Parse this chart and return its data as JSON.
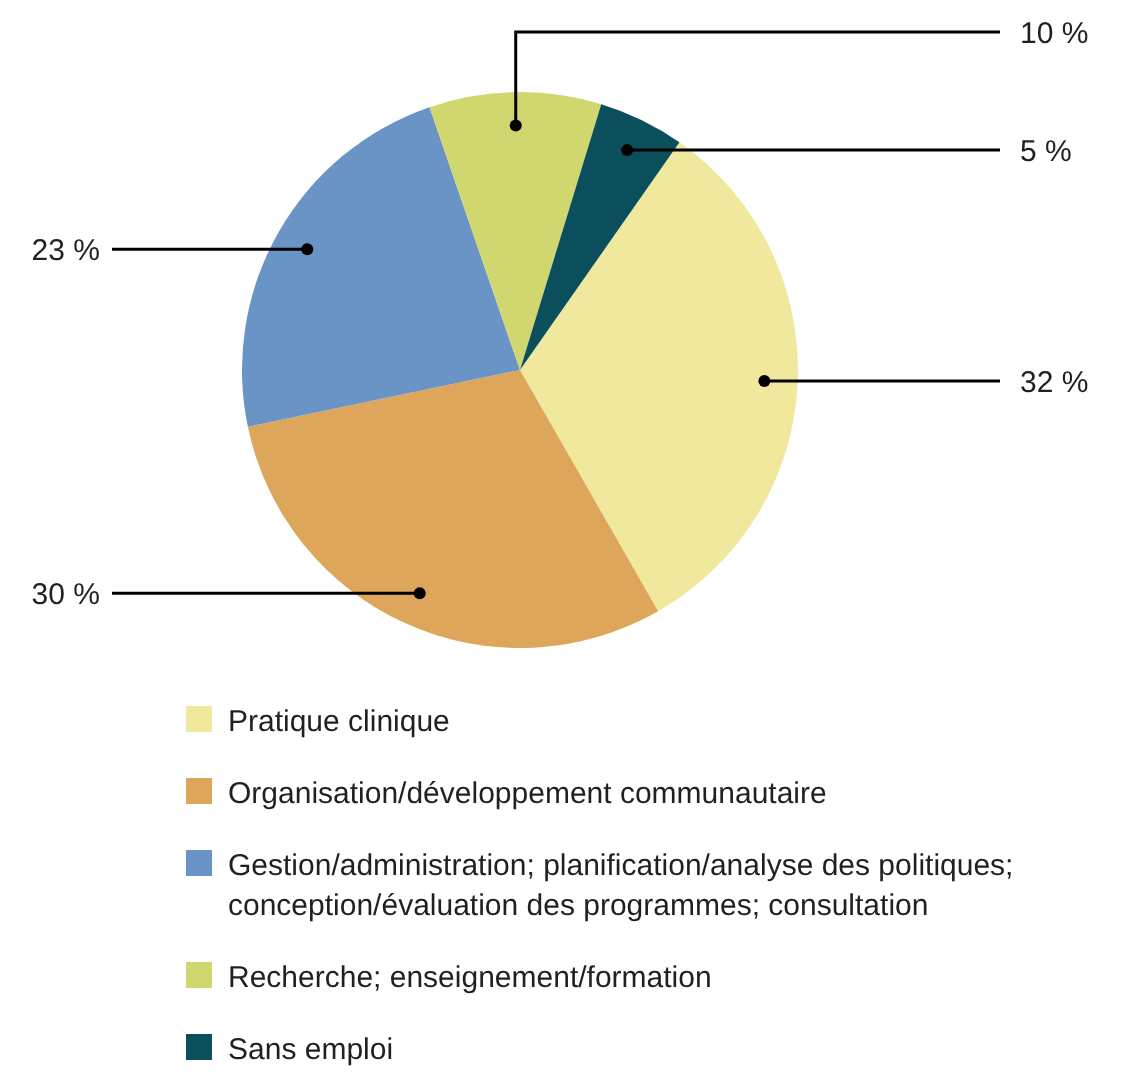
{
  "chart_data": {
    "type": "pie",
    "categories": [
      "Pratique clinique",
      "Organisation/développement communautaire",
      "Gestion/administration; planification/analyse des politiques; conception/évaluation des programmes; consultation",
      "Recherche; enseignement/formation",
      "Sans emploi"
    ],
    "values": [
      32,
      30,
      23,
      10,
      5
    ],
    "colors": [
      "#f0e89c",
      "#dea65a",
      "#6a93c6",
      "#cfd76e",
      "#0b4f5c"
    ],
    "value_labels": [
      "32 %",
      "30 %",
      "23 %",
      "10 %",
      "5 %"
    ],
    "legend": "bottom"
  }
}
